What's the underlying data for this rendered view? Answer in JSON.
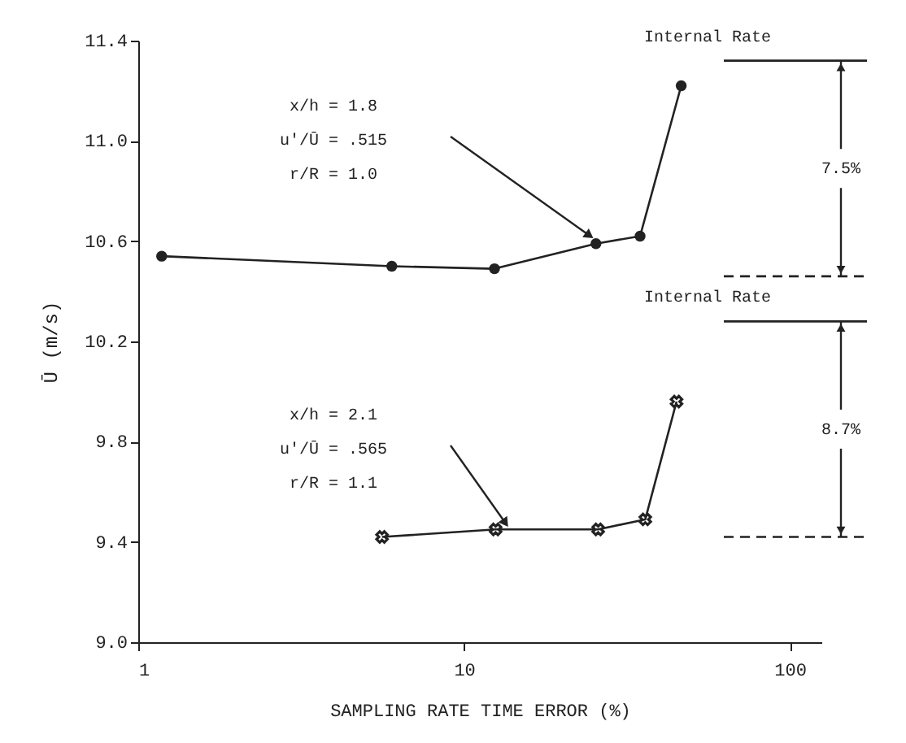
{
  "chart_data": {
    "type": "line",
    "xlabel": "SAMPLING RATE TIME ERROR (%)",
    "ylabel": "Ū (m/s)",
    "log": "x",
    "xlim": [
      1,
      125
    ],
    "xticks": [
      1,
      10,
      100
    ],
    "ylim": [
      9.0,
      11.4
    ],
    "yticks": [
      {
        "value": 9,
        "label": "9.0"
      },
      9.4,
      9.8,
      10.2,
      10.6,
      {
        "value": 11,
        "label": "11.0"
      },
      11.4
    ],
    "grid": false,
    "line_style": "solid",
    "series": [
      {
        "color": "#222222",
        "marker": "circle",
        "x": [
          1.18,
          6.0,
          12.4,
          25.4,
          34.7,
          46.4
        ],
        "values": [
          10.54,
          10.5,
          10.49,
          10.59,
          10.62,
          11.22
        ]
      },
      {
        "color": "#222222",
        "marker": "cross",
        "x": [
          5.6,
          12.5,
          25.8,
          36,
          44.9
        ],
        "values": [
          9.42,
          9.45,
          9.45,
          9.49,
          9.96
        ]
      }
    ],
    "ref_lines": [
      {
        "axis": "y",
        "value": 11.32,
        "label": "Internal Rate",
        "color": "#222222",
        "line_style": "solid"
      },
      {
        "axis": "y",
        "value": 10.46,
        "color": "#222222",
        "line_style": "dashed"
      },
      {
        "axis": "y",
        "value": 10.28,
        "label": "Internal Rate",
        "color": "#222222",
        "line_style": "solid"
      },
      {
        "axis": "y",
        "value": 9.42,
        "color": "#222222",
        "line_style": "dashed"
      }
    ],
    "annotations": [
      "x/h  = 1.8\nu'/Ū  =  .515\nr/R  = 1.0",
      "x/h  = 2.1\nu'/Ū  =  .565\nr/R  = 1.1",
      "7.5%",
      "8.7%"
    ]
  }
}
